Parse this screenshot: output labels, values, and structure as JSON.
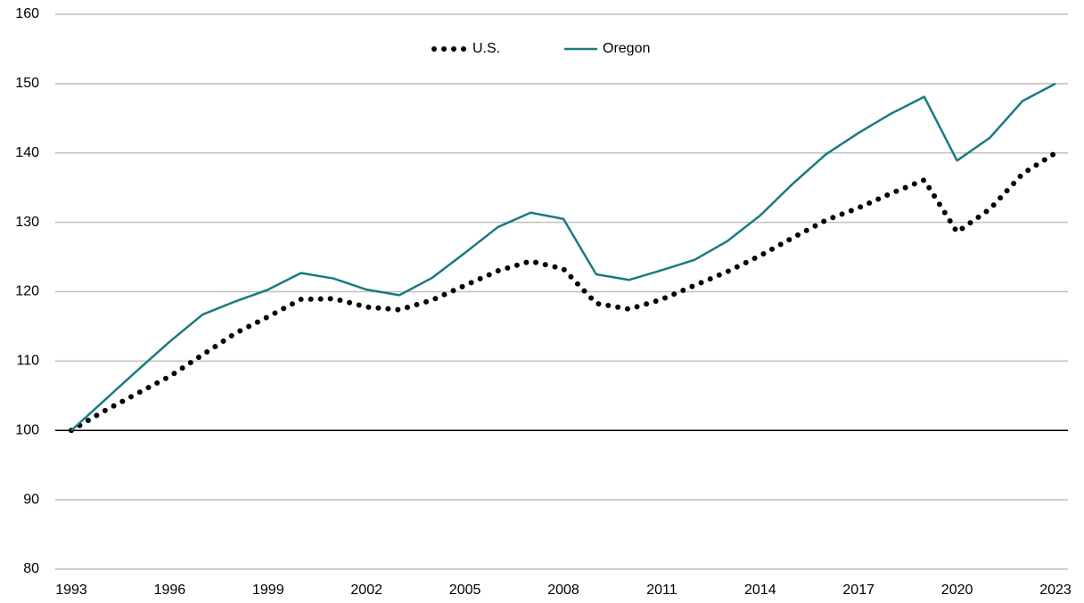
{
  "chart_data": {
    "type": "line",
    "x": [
      1993,
      1994,
      1995,
      1996,
      1997,
      1998,
      1999,
      2000,
      2001,
      2002,
      2003,
      2004,
      2005,
      2006,
      2007,
      2008,
      2009,
      2010,
      2011,
      2012,
      2013,
      2014,
      2015,
      2016,
      2017,
      2018,
      2019,
      2020,
      2021,
      2022,
      2023
    ],
    "series": [
      {
        "name": "U.S.",
        "color": "#000000",
        "dash": "dotted",
        "values": [
          100,
          102.8,
          105.3,
          107.8,
          110.9,
          114.0,
          116.4,
          118.9,
          119.0,
          117.8,
          117.4,
          118.8,
          120.9,
          123.0,
          124.4,
          123.3,
          118.3,
          117.5,
          118.9,
          120.9,
          122.9,
          125.2,
          127.8,
          130.3,
          132.1,
          134.2,
          136.1,
          128.6,
          131.9,
          137.0,
          140.0
        ]
      },
      {
        "name": "Oregon",
        "color": "#1a7a80",
        "dash": "solid",
        "values": [
          100,
          104.3,
          108.6,
          112.8,
          116.7,
          118.6,
          120.3,
          122.7,
          121.9,
          120.3,
          119.5,
          122.0,
          125.6,
          129.3,
          131.4,
          130.5,
          122.5,
          121.7,
          123.1,
          124.6,
          127.3,
          131.0,
          135.6,
          139.8,
          142.9,
          145.7,
          148.1,
          138.9,
          142.2,
          147.5,
          150.0
        ]
      }
    ],
    "xlim": [
      1993,
      2023
    ],
    "xticks": [
      1993,
      1996,
      1999,
      2002,
      2005,
      2008,
      2011,
      2014,
      2017,
      2020,
      2023
    ],
    "ylim": [
      80,
      160
    ],
    "yticks": [
      80,
      90,
      100,
      110,
      120,
      130,
      140,
      150,
      160
    ],
    "baseline": 100,
    "grid": true,
    "legend": "top"
  }
}
